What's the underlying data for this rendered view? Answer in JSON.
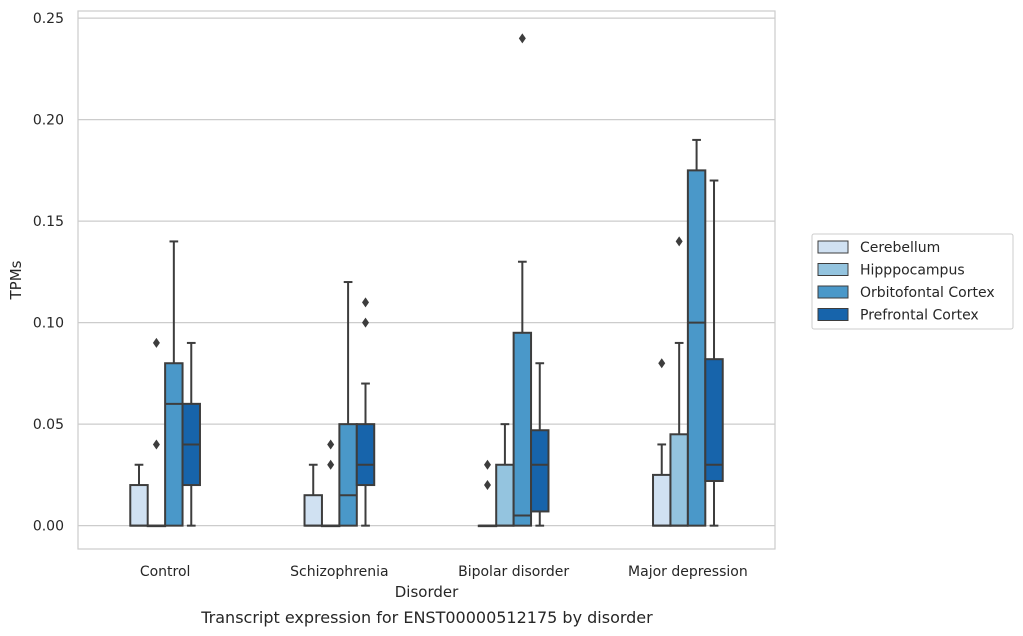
{
  "chart_data": {
    "type": "box",
    "title": "",
    "caption": "Transcript expression for ENST00000512175 by disorder",
    "xlabel": "Disorder",
    "ylabel": "TPMs",
    "ylim": [
      -0.0115,
      0.2535
    ],
    "yticks": [
      0.0,
      0.05,
      0.1,
      0.15,
      0.2,
      0.25
    ],
    "ytick_labels": [
      "0.00",
      "0.05",
      "0.10",
      "0.15",
      "0.20",
      "0.25"
    ],
    "grid": "horizontal",
    "legend_position": "right",
    "categories": [
      "Control",
      "Schizophrenia",
      "Bipolar disorder",
      "Major depression"
    ],
    "series": [
      {
        "name": "Cerebellum",
        "color": "#d0e1f2",
        "boxes": [
          {
            "whisker_low": 0.0,
            "q1": 0.0,
            "median": 0.0,
            "q3": 0.02,
            "whisker_high": 0.03,
            "outliers": []
          },
          {
            "whisker_low": 0.0,
            "q1": 0.0,
            "median": 0.0,
            "q3": 0.015,
            "whisker_high": 0.03,
            "outliers": []
          },
          {
            "whisker_low": 0.0,
            "q1": 0.0,
            "median": 0.0,
            "q3": 0.0,
            "whisker_high": 0.0,
            "outliers": [
              0.02,
              0.03
            ]
          },
          {
            "whisker_low": 0.0,
            "q1": 0.0,
            "median": 0.0,
            "q3": 0.025,
            "whisker_high": 0.04,
            "outliers": [
              0.08
            ]
          }
        ]
      },
      {
        "name": "Hipppocampus",
        "color": "#94c4df",
        "boxes": [
          {
            "whisker_low": 0.0,
            "q1": 0.0,
            "median": 0.0,
            "q3": 0.0,
            "whisker_high": 0.0,
            "outliers": [
              0.04,
              0.09
            ]
          },
          {
            "whisker_low": 0.0,
            "q1": 0.0,
            "median": 0.0,
            "q3": 0.0,
            "whisker_high": 0.0,
            "outliers": [
              0.03,
              0.04
            ]
          },
          {
            "whisker_low": 0.0,
            "q1": 0.0,
            "median": 0.0,
            "q3": 0.03,
            "whisker_high": 0.05,
            "outliers": []
          },
          {
            "whisker_low": 0.0,
            "q1": 0.0,
            "median": 0.0,
            "q3": 0.045,
            "whisker_high": 0.09,
            "outliers": [
              0.14
            ]
          }
        ]
      },
      {
        "name": "Orbitofontal Cortex",
        "color": "#4a98c9",
        "boxes": [
          {
            "whisker_low": 0.0,
            "q1": 0.0,
            "median": 0.06,
            "q3": 0.08,
            "whisker_high": 0.14,
            "outliers": []
          },
          {
            "whisker_low": 0.0,
            "q1": 0.0,
            "median": 0.015,
            "q3": 0.05,
            "whisker_high": 0.12,
            "outliers": []
          },
          {
            "whisker_low": 0.0,
            "q1": 0.0,
            "median": 0.005,
            "q3": 0.095,
            "whisker_high": 0.13,
            "outliers": [
              0.24
            ]
          },
          {
            "whisker_low": 0.0,
            "q1": 0.0,
            "median": 0.1,
            "q3": 0.175,
            "whisker_high": 0.19,
            "outliers": []
          }
        ]
      },
      {
        "name": "Prefrontal Cortex",
        "color": "#1764ab",
        "boxes": [
          {
            "whisker_low": 0.0,
            "q1": 0.02,
            "median": 0.04,
            "q3": 0.06,
            "whisker_high": 0.09,
            "outliers": []
          },
          {
            "whisker_low": 0.0,
            "q1": 0.02,
            "median": 0.03,
            "q3": 0.05,
            "whisker_high": 0.07,
            "outliers": [
              0.1,
              0.11
            ]
          },
          {
            "whisker_low": 0.0,
            "q1": 0.007,
            "median": 0.03,
            "q3": 0.047,
            "whisker_high": 0.08,
            "outliers": []
          },
          {
            "whisker_low": 0.0,
            "q1": 0.022,
            "median": 0.03,
            "q3": 0.082,
            "whisker_high": 0.17,
            "outliers": []
          }
        ]
      }
    ]
  }
}
